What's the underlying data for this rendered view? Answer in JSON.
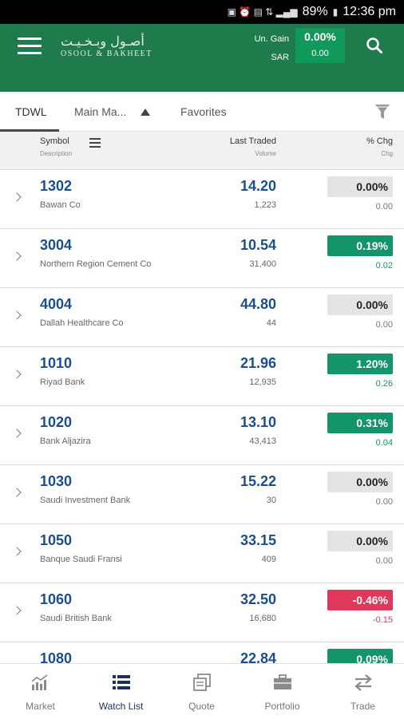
{
  "status": {
    "battery": "89%",
    "time": "12:36 pm"
  },
  "header": {
    "logo_ar": "أصـول وبـخـيـت",
    "logo_en": "OSOOL & BAKHEET",
    "gain_label": "Un. Gain",
    "currency_label": "SAR",
    "gain_pct": "0.00%",
    "gain_value": "0.00"
  },
  "tabs": [
    {
      "label": "TDWL"
    },
    {
      "label": "Main Ma..."
    },
    {
      "label": "Favorites"
    }
  ],
  "columns": {
    "symbol": "Symbol",
    "description": "Description",
    "last_traded": "Last Traded",
    "volume": "Volume",
    "pct_chg": "% Chg",
    "chg": "Chg"
  },
  "rows": [
    {
      "symbol": "1302",
      "desc": "Bawan Co",
      "price": "14.20",
      "volume": "1,223",
      "pct": "0.00%",
      "chg": "0.00",
      "dir": "zero"
    },
    {
      "symbol": "3004",
      "desc": "Northern Region Cement Co",
      "price": "10.54",
      "volume": "31,400",
      "pct": "0.19%",
      "chg": "0.02",
      "dir": "up"
    },
    {
      "symbol": "4004",
      "desc": "Dallah Healthcare Co",
      "price": "44.80",
      "volume": "44",
      "pct": "0.00%",
      "chg": "0.00",
      "dir": "zero"
    },
    {
      "symbol": "1010",
      "desc": "Riyad Bank",
      "price": "21.96",
      "volume": "12,935",
      "pct": "1.20%",
      "chg": "0.26",
      "dir": "up"
    },
    {
      "symbol": "1020",
      "desc": "Bank Aljazira",
      "price": "13.10",
      "volume": "43,413",
      "pct": "0.31%",
      "chg": "0.04",
      "dir": "up"
    },
    {
      "symbol": "1030",
      "desc": "Saudi Investment Bank",
      "price": "15.22",
      "volume": "30",
      "pct": "0.00%",
      "chg": "0.00",
      "dir": "zero"
    },
    {
      "symbol": "1050",
      "desc": "Banque Saudi Fransi",
      "price": "33.15",
      "volume": "409",
      "pct": "0.00%",
      "chg": "0.00",
      "dir": "zero"
    },
    {
      "symbol": "1060",
      "desc": "Saudi British Bank",
      "price": "32.50",
      "volume": "16,680",
      "pct": "-0.46%",
      "chg": "-0.15",
      "dir": "down"
    },
    {
      "symbol": "1080",
      "desc": "",
      "price": "22.84",
      "volume": "",
      "pct": "0.09%",
      "chg": "",
      "dir": "up"
    }
  ],
  "nav": [
    {
      "label": "Market",
      "icon": "market-chart-icon"
    },
    {
      "label": "Watch List",
      "icon": "watch-list-icon"
    },
    {
      "label": "Quote",
      "icon": "quote-icon"
    },
    {
      "label": "Portfolio",
      "icon": "portfolio-briefcase-icon"
    },
    {
      "label": "Trade",
      "icon": "trade-arrows-icon"
    }
  ]
}
